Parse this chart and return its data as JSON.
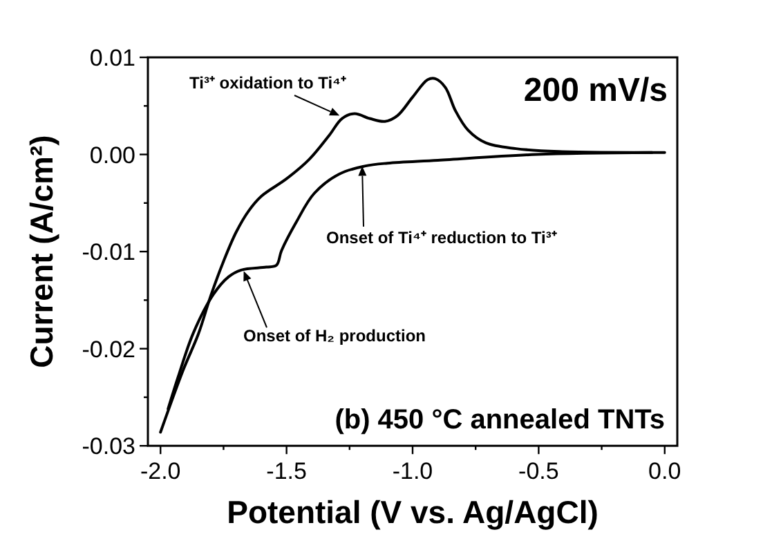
{
  "chart_data": {
    "type": "line",
    "xlabel": "Potential (V vs. Ag/AgCl)",
    "ylabel": "Current (A/cm²)",
    "xlim": [
      -2.05,
      0.05
    ],
    "ylim": [
      -0.03,
      0.01
    ],
    "xticks": [
      {
        "value": -2,
        "label": "-2.0"
      },
      {
        "value": -1.75,
        "label": null
      },
      {
        "value": -1.5,
        "label": "-1.5"
      },
      {
        "value": -1.25,
        "label": null
      },
      {
        "value": -1,
        "label": "-1.0"
      },
      {
        "value": -0.75,
        "label": null
      },
      {
        "value": -0.5,
        "label": "-0.5"
      },
      {
        "value": -0.25,
        "label": null
      },
      {
        "value": 0,
        "label": "0.0"
      }
    ],
    "yticks": [
      {
        "value": -0.03,
        "label": "-0.03"
      },
      {
        "value": -0.025,
        "label": null
      },
      {
        "value": -0.02,
        "label": "-0.02"
      },
      {
        "value": -0.015,
        "label": null
      },
      {
        "value": -0.01,
        "label": "-0.01"
      },
      {
        "value": -0.005,
        "label": null
      },
      {
        "value": 0,
        "label": "0.00"
      },
      {
        "value": 0.005,
        "label": null
      },
      {
        "value": 0.01,
        "label": "0.01"
      }
    ],
    "grid": false,
    "marker": "none",
    "line_style": "solid",
    "series": [
      {
        "color": "#000000",
        "x": [
          -2.0,
          -1.91,
          -1.85,
          -1.8,
          -1.75,
          -1.7,
          -1.65,
          -1.6,
          -1.5,
          -1.41,
          -1.33,
          -1.28,
          -1.23,
          -1.17,
          -1.11,
          -1.06,
          -1.0,
          -0.94,
          -0.91,
          -0.87,
          -0.83,
          -0.78,
          -0.71,
          -0.59,
          -0.42,
          0.0
        ],
        "values": [
          -0.0286,
          -0.0222,
          -0.0185,
          -0.0145,
          -0.011,
          -0.008,
          -0.0058,
          -0.0043,
          -0.0025,
          -0.0005,
          0.002,
          0.0037,
          0.0042,
          0.0037,
          0.0034,
          0.004,
          0.0059,
          0.0077,
          0.0078,
          0.0069,
          0.0045,
          0.0025,
          0.0012,
          0.0006,
          0.0003,
          0.0002
        ]
      },
      {
        "color": "#000000",
        "x": [
          -0.05,
          -0.51,
          -0.9,
          -1.1,
          -1.19,
          -1.29,
          -1.39,
          -1.46,
          -1.52,
          -1.54,
          -1.58,
          -1.68,
          -1.73,
          -1.79,
          -1.87,
          -1.93,
          -1.97
        ],
        "values": [
          0.0002,
          0.0,
          -0.0006,
          -0.0009,
          -0.0012,
          -0.002,
          -0.004,
          -0.0069,
          -0.0099,
          -0.0114,
          -0.0116,
          -0.0119,
          -0.0126,
          -0.0144,
          -0.0184,
          -0.0229,
          -0.0262
        ]
      }
    ],
    "annotations": [
      {
        "text": "Ti³⁺  oxidation to Ti⁴⁺",
        "x": -1.29,
        "y": 0.004
      },
      {
        "text": "Onset of Ti⁴⁺  reduction to Ti³⁺",
        "x": -1.2,
        "y": -0.0012
      },
      {
        "text": "Onset of H₂ production",
        "x": -1.67,
        "y": -0.012
      },
      "200 mV/s",
      "(b) 450 °C annealed TNTs"
    ]
  }
}
